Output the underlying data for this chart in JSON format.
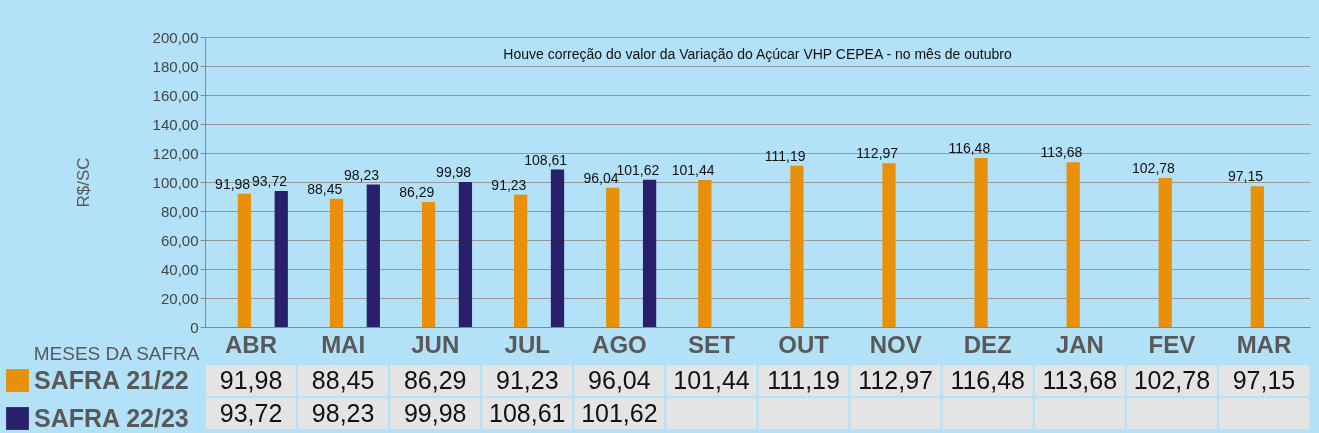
{
  "chart_data": {
    "type": "bar",
    "ylabel": "R$/SC",
    "xlabel": "MESES DA SAFRA",
    "annotations": [
      "Houve correção do valor da Variação do Açúcar VHP CEPEA - no mês de outubro"
    ],
    "categories": [
      "ABR",
      "MAI",
      "JUN",
      "JUL",
      "AGO",
      "SET",
      "OUT",
      "NOV",
      "DEZ",
      "JAN",
      "FEV",
      "MAR"
    ],
    "series": [
      {
        "name": "SAFRA 21/22",
        "color": "#e8900a",
        "values": [
          91.98,
          88.45,
          86.29,
          91.23,
          96.04,
          101.44,
          111.19,
          112.97,
          116.48,
          113.68,
          102.78,
          97.15
        ],
        "value_labels": [
          "91,98",
          "88,45",
          "86,29",
          "91,23",
          "96,04",
          "101,44",
          "111,19",
          "112,97",
          "116,48",
          "113,68",
          "102,78",
          "97,15"
        ]
      },
      {
        "name": "SAFRA 22/23",
        "color": "#2a1f6b",
        "values": [
          93.72,
          98.23,
          99.98,
          108.61,
          101.62,
          null,
          null,
          null,
          null,
          null,
          null,
          null
        ],
        "value_labels": [
          "93,72",
          "98,23",
          "99,98",
          "108,61",
          "101,62",
          null,
          null,
          null,
          null,
          null,
          null,
          null
        ]
      }
    ],
    "ylim": [
      0,
      200
    ],
    "yticks": [
      0,
      {
        "value": 20,
        "label": "20,00"
      },
      {
        "value": 40,
        "label": "40,00"
      },
      {
        "value": 60,
        "label": "60,00"
      },
      {
        "value": 80,
        "label": "80,00"
      },
      {
        "value": 100,
        "label": "100,00"
      },
      {
        "value": 120,
        "label": "120,00"
      },
      {
        "value": 140,
        "label": "140,00"
      },
      {
        "value": 160,
        "label": "160,00"
      },
      {
        "value": 180,
        "label": "180,00"
      },
      {
        "value": 200,
        "label": "200,00"
      }
    ],
    "grid": "y",
    "legend": "bottom left"
  }
}
